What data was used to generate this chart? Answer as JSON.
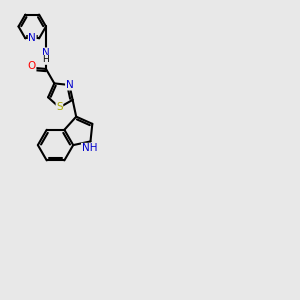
{
  "bg_color": "#e8e8e8",
  "bond_color": "#000000",
  "bond_width": 1.5,
  "atom_colors": {
    "N": "#0000cc",
    "S": "#aaaa00",
    "O": "#ff0000",
    "H": "#000000",
    "C": "#000000"
  },
  "font_size": 7.5
}
